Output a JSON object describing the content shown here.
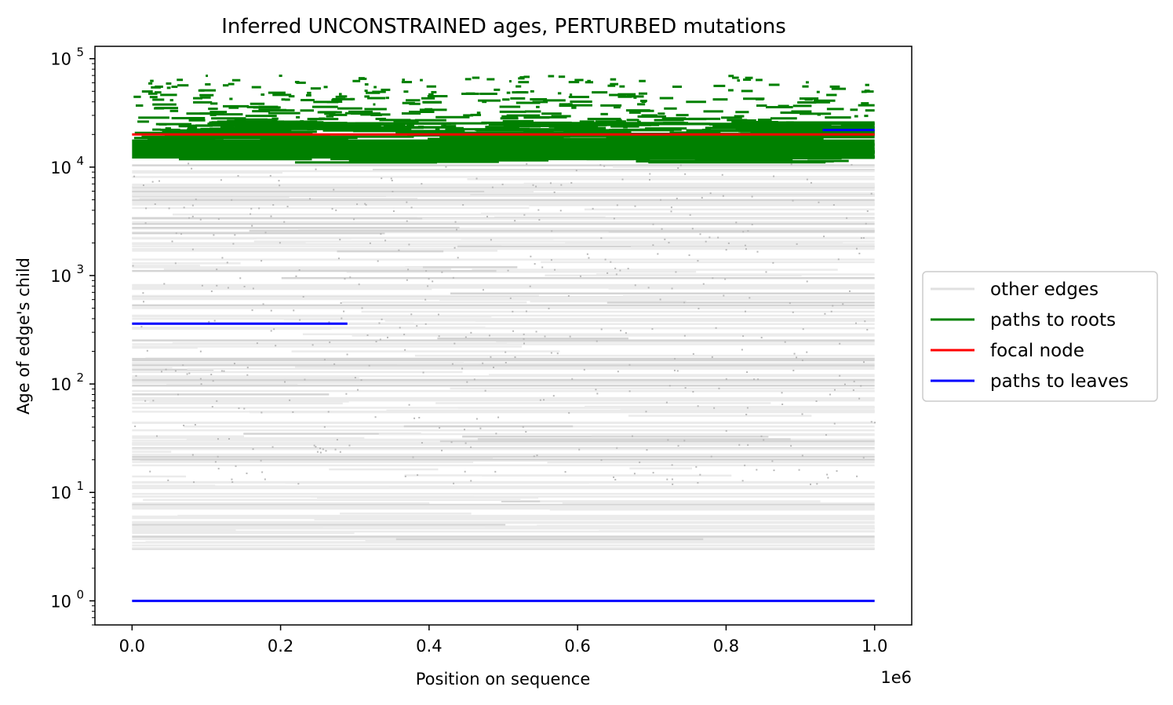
{
  "chart_data": {
    "type": "line",
    "title": "Inferred UNCONSTRAINED ages, PERTURBED mutations",
    "xlabel": "Position on sequence",
    "ylabel": "Age of edge's child",
    "x_offset_label": "1e6",
    "xlim": [
      -50000,
      1050000
    ],
    "ylim": [
      0.6,
      130000
    ],
    "yscale": "log",
    "grid": false,
    "legend_position": "center-right outside",
    "x_ticks": [
      0,
      200000,
      400000,
      600000,
      800000,
      1000000
    ],
    "x_tick_labels": [
      "0.0",
      "0.2",
      "0.4",
      "0.6",
      "0.8",
      "1.0"
    ],
    "y_ticks": [
      1,
      10,
      100,
      1000,
      10000,
      100000
    ],
    "y_tick_labels": [
      {
        "base": "10",
        "exp": "0"
      },
      {
        "base": "10",
        "exp": "1"
      },
      {
        "base": "10",
        "exp": "2"
      },
      {
        "base": "10",
        "exp": "3"
      },
      {
        "base": "10",
        "exp": "4"
      },
      {
        "base": "10",
        "exp": "5"
      }
    ],
    "series": [
      {
        "name": "other edges",
        "color": "#e0e0e0",
        "description_range": {
          "x": [
            0,
            1000000
          ],
          "y": [
            3,
            11000
          ]
        }
      },
      {
        "name": "paths to roots",
        "color": "#008000",
        "description_range": {
          "x": [
            0,
            1000000
          ],
          "y": [
            11000,
            70000
          ]
        }
      },
      {
        "name": "focal node",
        "color": "#ff0000",
        "segments": [
          {
            "x": [
              0,
              1000000
            ],
            "y": 20000
          }
        ]
      },
      {
        "name": "paths to leaves",
        "color": "#0000ff",
        "segments": [
          {
            "x": [
              0,
              1000000
            ],
            "y": 1
          },
          {
            "x": [
              0,
              290000
            ],
            "y": 360
          },
          {
            "x": [
              930000,
              1000000
            ],
            "y": 22000
          }
        ]
      }
    ]
  }
}
